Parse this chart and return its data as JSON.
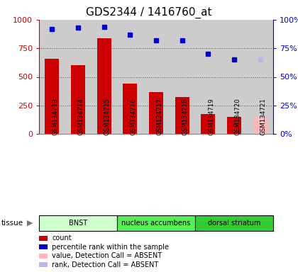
{
  "title": "GDS2344 / 1416760_at",
  "samples": [
    "GSM134713",
    "GSM134714",
    "GSM134715",
    "GSM134716",
    "GSM134717",
    "GSM134718",
    "GSM134719",
    "GSM134720",
    "GSM134721"
  ],
  "bar_values": [
    660,
    600,
    840,
    440,
    365,
    320,
    175,
    148,
    148
  ],
  "bar_colors": [
    "#cc0000",
    "#cc0000",
    "#cc0000",
    "#cc0000",
    "#cc0000",
    "#cc0000",
    "#cc0000",
    "#cc0000",
    "#ffb8b8"
  ],
  "dot_values": [
    92,
    93,
    94,
    87,
    82,
    82,
    70,
    65,
    65
  ],
  "dot_colors": [
    "#0000cc",
    "#0000cc",
    "#0000cc",
    "#0000cc",
    "#0000cc",
    "#0000cc",
    "#0000cc",
    "#0000cc",
    "#b8b8e8"
  ],
  "absent_indices": [
    8
  ],
  "ylim_left": [
    0,
    1000
  ],
  "ylim_right": [
    0,
    100
  ],
  "yticks_left": [
    0,
    250,
    500,
    750,
    1000
  ],
  "yticks_right": [
    0,
    25,
    50,
    75,
    100
  ],
  "tissue_groups": [
    {
      "label": "BNST",
      "start": 0,
      "end": 3,
      "color": "#ccffcc"
    },
    {
      "label": "nucleus accumbens",
      "start": 3,
      "end": 6,
      "color": "#55ee55"
    },
    {
      "label": "dorsal striatum",
      "start": 6,
      "end": 9,
      "color": "#33cc33"
    }
  ],
  "tissue_label": "tissue",
  "legend_items": [
    {
      "color": "#cc0000",
      "label": "count",
      "marker": "s"
    },
    {
      "color": "#0000cc",
      "label": "percentile rank within the sample",
      "marker": "s"
    },
    {
      "color": "#ffb8b8",
      "label": "value, Detection Call = ABSENT",
      "marker": "s"
    },
    {
      "color": "#b8b8e8",
      "label": "rank, Detection Call = ABSENT",
      "marker": "s"
    }
  ],
  "background_color": "#ffffff",
  "grid_color": "#555555",
  "title_fontsize": 11,
  "axis_color_left": "#cc0000",
  "axis_color_right": "#0000cc",
  "sample_bg_color": "#cccccc",
  "bar_width": 0.55
}
